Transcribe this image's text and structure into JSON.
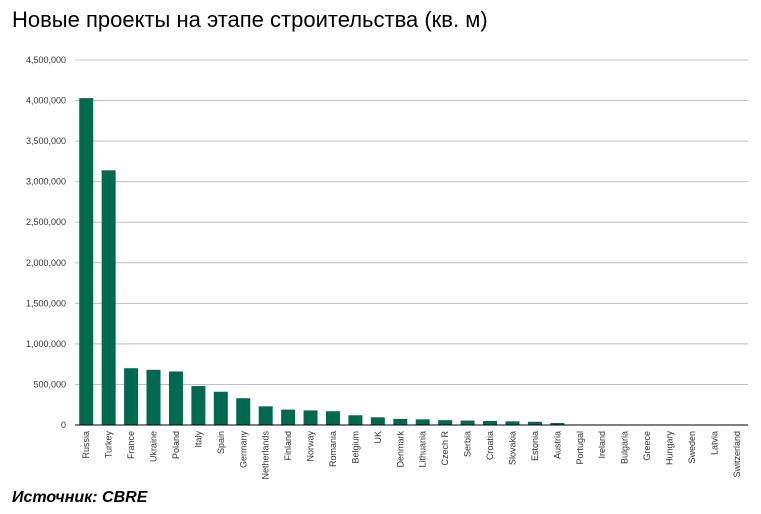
{
  "title": "Новые проекты на этапе строительства (кв. м)",
  "source": "Источник: CBRE",
  "chart_data": {
    "type": "bar",
    "title": "Новые проекты на этапе строительства (кв. м)",
    "xlabel": "",
    "ylabel": "",
    "ylim": [
      0,
      4500000
    ],
    "grid": true,
    "bar_color": "#006A4E",
    "yticks": [
      0,
      500000,
      1000000,
      1500000,
      2000000,
      2500000,
      3000000,
      3500000,
      4000000,
      4500000
    ],
    "ytick_labels": [
      "0",
      "500,000",
      "1,000,000",
      "1,500,000",
      "2,000,000",
      "2,500,000",
      "3,000,000",
      "3,500,000",
      "4,000,000",
      "4,500,000"
    ],
    "categories": [
      "Russia",
      "Turkey",
      "France",
      "Ukraine",
      "Poland",
      "Italy",
      "Spain",
      "Germany",
      "Netherlands",
      "Finland",
      "Norway",
      "Romania",
      "Belgium",
      "UK",
      "Denmark",
      "Lithuania",
      "Czech R",
      "Serbia",
      "Croatia",
      "Slovakia",
      "Estonia",
      "Austria",
      "Portugal",
      "Ireland",
      "Bulgaria",
      "Greece",
      "Hungary",
      "Sweden",
      "Latvia",
      "Switzerland"
    ],
    "values": [
      4030000,
      3140000,
      700000,
      680000,
      660000,
      480000,
      410000,
      330000,
      230000,
      190000,
      180000,
      170000,
      120000,
      95000,
      75000,
      70000,
      60000,
      55000,
      50000,
      45000,
      40000,
      25000,
      5000,
      4000,
      3000,
      2000,
      2000,
      1500,
      1000,
      1000
    ]
  }
}
